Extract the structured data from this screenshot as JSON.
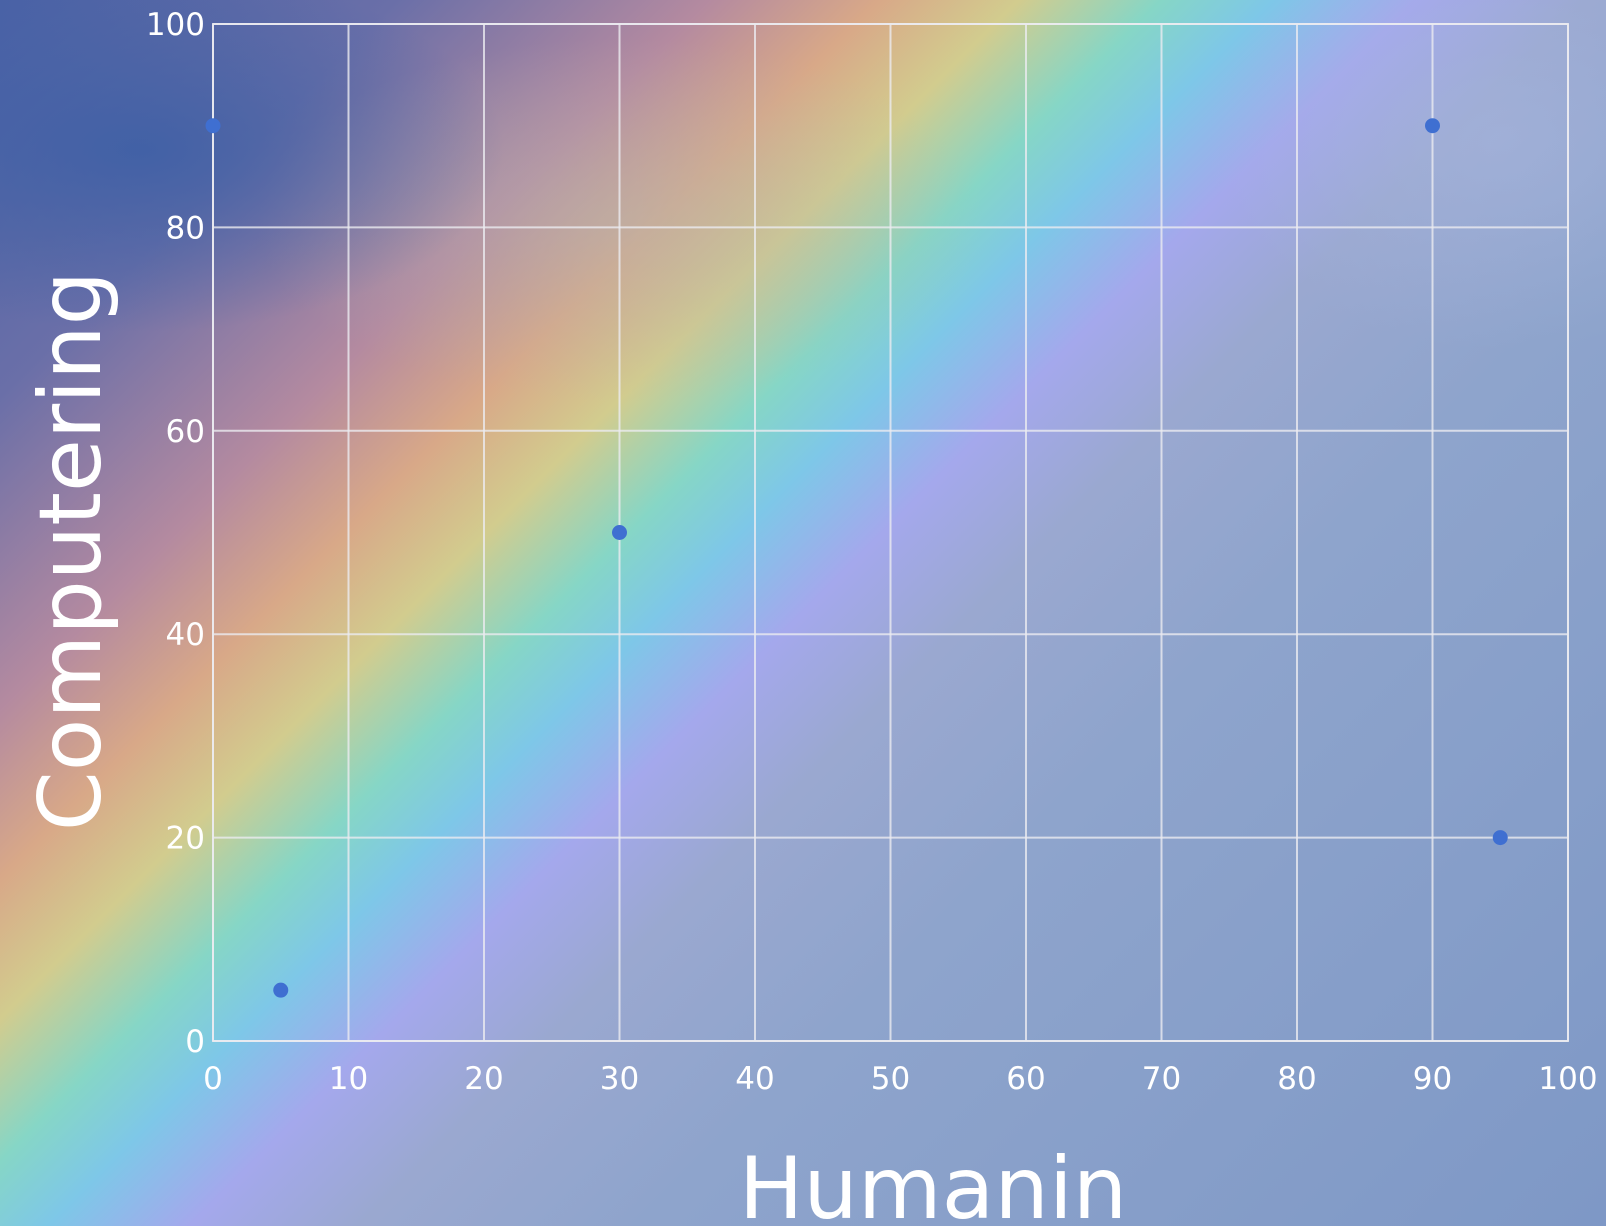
{
  "chart_data": {
    "type": "scatter",
    "title": "",
    "xlabel": "Humanin",
    "ylabel": "Computering",
    "xlim": [
      0,
      100
    ],
    "ylim": [
      0,
      100
    ],
    "xticks": [
      "0",
      "10",
      "20",
      "30",
      "40",
      "50",
      "60",
      "70",
      "80",
      "90",
      "100"
    ],
    "yticks": [
      "0",
      "20",
      "40",
      "60",
      "80",
      "100"
    ],
    "grid": true,
    "legend": "none",
    "marker_color": "#3f6fd1",
    "points": [
      {
        "x": 0,
        "y": 90
      },
      {
        "x": 5,
        "y": 5
      },
      {
        "x": 30,
        "y": 50
      },
      {
        "x": 90,
        "y": 90
      },
      {
        "x": 95,
        "y": 20
      }
    ]
  }
}
